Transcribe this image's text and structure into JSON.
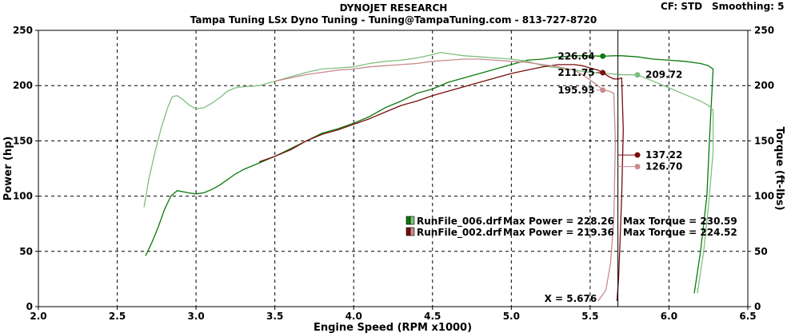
{
  "header": {
    "title": "DYNOJET RESEARCH",
    "subtitle": "Tampa Tuning LSx Dyno Tuning - Tuning@TampaTuning.com - 813-727-8720",
    "cf": "CF: STD",
    "smoothing": "Smoothing: 5"
  },
  "chart_data": {
    "type": "line",
    "xlabel": "Engine Speed (RPM x1000)",
    "ylabel_left": "Power (hp)",
    "ylabel_right": "Torque (ft-lbs)",
    "xlim": [
      2.0,
      6.5
    ],
    "ylim": [
      0,
      250
    ],
    "x_ticks": [
      2.0,
      2.5,
      3.0,
      3.5,
      4.0,
      4.5,
      5.0,
      5.5,
      6.0,
      6.5
    ],
    "x_tick_labels": [
      "2.0",
      "2.5",
      "3.0",
      "3.5",
      "4.0",
      "4.5",
      "5.0",
      "5.5",
      "6.0",
      "6.5"
    ],
    "y_ticks": [
      0,
      50,
      100,
      150,
      200,
      250
    ],
    "y_tick_labels": [
      "0",
      "50",
      "100",
      "150",
      "200",
      "250"
    ],
    "grid": true,
    "colors": {
      "run006_power": "#0c7a0c",
      "run006_torque": "#7fbf7f",
      "run002_power": "#7a0c0c",
      "run002_torque": "#c98a8a",
      "cursor": "#000000"
    },
    "series": [
      {
        "key": "run006_power",
        "x": [
          2.68,
          2.72,
          2.76,
          2.8,
          2.84,
          2.88,
          2.95,
          3.0,
          3.05,
          3.1,
          3.15,
          3.2,
          3.25,
          3.3,
          3.4,
          3.5,
          3.6,
          3.7,
          3.8,
          3.9,
          4.0,
          4.1,
          4.2,
          4.3,
          4.4,
          4.5,
          4.6,
          4.7,
          4.8,
          4.9,
          5.0,
          5.1,
          5.2,
          5.3,
          5.4,
          5.5,
          5.58,
          5.65,
          5.7,
          5.8,
          5.9,
          6.0,
          6.1,
          6.2,
          6.25,
          6.28,
          6.26,
          6.24,
          6.2,
          6.16
        ],
        "y": [
          46,
          58,
          72,
          88,
          100,
          105,
          103,
          102,
          103,
          106,
          110,
          115,
          120,
          124,
          130,
          136,
          143,
          150,
          157,
          161,
          166,
          172,
          180,
          186,
          193,
          197,
          203,
          207,
          211,
          215,
          219,
          223,
          224,
          226,
          227,
          227,
          226.6,
          227,
          227,
          226,
          224,
          223,
          222,
          220,
          218,
          215,
          160,
          100,
          50,
          12
        ]
      },
      {
        "key": "run006_torque",
        "x": [
          2.67,
          2.7,
          2.74,
          2.78,
          2.82,
          2.85,
          2.88,
          2.92,
          2.96,
          3.0,
          3.05,
          3.1,
          3.15,
          3.2,
          3.25,
          3.3,
          3.4,
          3.5,
          3.6,
          3.7,
          3.8,
          3.9,
          4.0,
          4.1,
          4.2,
          4.3,
          4.4,
          4.5,
          4.55,
          4.6,
          4.7,
          4.8,
          4.9,
          5.0,
          5.1,
          5.2,
          5.3,
          5.4,
          5.5,
          5.6,
          5.7,
          5.8,
          5.9,
          6.0,
          6.1,
          6.2,
          6.25,
          6.28,
          6.28,
          6.25,
          6.22,
          6.18
        ],
        "y": [
          90,
          115,
          140,
          162,
          180,
          190,
          191,
          187,
          182,
          179,
          180,
          184,
          189,
          195,
          198,
          199,
          200,
          204,
          208,
          212,
          215,
          216,
          217,
          220,
          222,
          223,
          225,
          228,
          230,
          229,
          227,
          226,
          225,
          224,
          222,
          218,
          216,
          214,
          212,
          211,
          210,
          209.7,
          204,
          198,
          192,
          186,
          182,
          178,
          140,
          90,
          50,
          12
        ]
      },
      {
        "key": "run002_power",
        "x": [
          3.4,
          3.5,
          3.6,
          3.7,
          3.8,
          3.9,
          4.0,
          4.1,
          4.2,
          4.3,
          4.4,
          4.5,
          4.6,
          4.7,
          4.8,
          4.9,
          5.0,
          5.1,
          5.2,
          5.3,
          5.4,
          5.45,
          5.5,
          5.55,
          5.58,
          5.62,
          5.65,
          5.68,
          5.7,
          5.71,
          5.7,
          5.69,
          5.68,
          5.67
        ],
        "y": [
          131,
          136,
          142,
          150,
          156,
          160,
          165,
          170,
          176,
          182,
          186,
          191,
          195,
          199,
          203,
          207,
          211,
          214,
          217,
          219,
          219,
          218,
          216,
          214,
          211.75,
          208,
          206,
          206,
          207,
          160,
          100,
          60,
          25,
          5
        ]
      },
      {
        "key": "run002_torque",
        "x": [
          3.5,
          3.6,
          3.7,
          3.8,
          3.9,
          4.0,
          4.1,
          4.2,
          4.3,
          4.4,
          4.5,
          4.6,
          4.7,
          4.8,
          4.9,
          5.0,
          5.1,
          5.2,
          5.3,
          5.4,
          5.45,
          5.5,
          5.55,
          5.58,
          5.62,
          5.65,
          5.66,
          5.65,
          5.63,
          5.6,
          5.55
        ],
        "y": [
          204,
          207,
          210,
          212,
          214,
          215,
          217,
          218,
          219,
          220,
          222,
          223,
          224,
          224,
          223,
          222,
          221,
          219,
          217,
          214,
          210,
          205,
          200,
          195.9,
          195,
          193,
          150,
          80,
          40,
          15,
          5
        ]
      }
    ],
    "cursor": {
      "x": 5.676,
      "label": "X = 5.676"
    },
    "markers": [
      {
        "key": "m1",
        "x": 5.58,
        "y": 226.64,
        "label": "226.64",
        "color": "#0c7a0c",
        "side": "left"
      },
      {
        "key": "m2",
        "x": 5.58,
        "y": 211.75,
        "label": "211.75",
        "color": "#7a0c0c",
        "side": "left"
      },
      {
        "key": "m3",
        "x": 5.58,
        "y": 195.93,
        "label": "195.93",
        "color": "#c98a8a",
        "side": "left"
      },
      {
        "key": "m4",
        "x": 5.8,
        "y": 209.72,
        "label": "209.72",
        "color": "#7fbf7f",
        "side": "right"
      },
      {
        "key": "m5",
        "x": 5.8,
        "y": 137.22,
        "label": "137.22",
        "color": "#7a0c0c",
        "side": "right"
      },
      {
        "key": "m6",
        "x": 5.8,
        "y": 126.7,
        "label": "126.70",
        "color": "#c98a8a",
        "side": "right"
      }
    ],
    "legend": {
      "placement": "lower-right",
      "rows": [
        {
          "file": "RunFile_006.drf",
          "power": "Max Power = 228.26",
          "torque": "Max Torque = 230.59",
          "color": "#0c7a0c",
          "color2": "#7fbf7f"
        },
        {
          "file": "RunFile_002.drf",
          "power": "Max Power = 219.36",
          "torque": "Max Torque = 224.52",
          "color": "#7a0c0c",
          "color2": "#c98a8a"
        }
      ]
    }
  }
}
